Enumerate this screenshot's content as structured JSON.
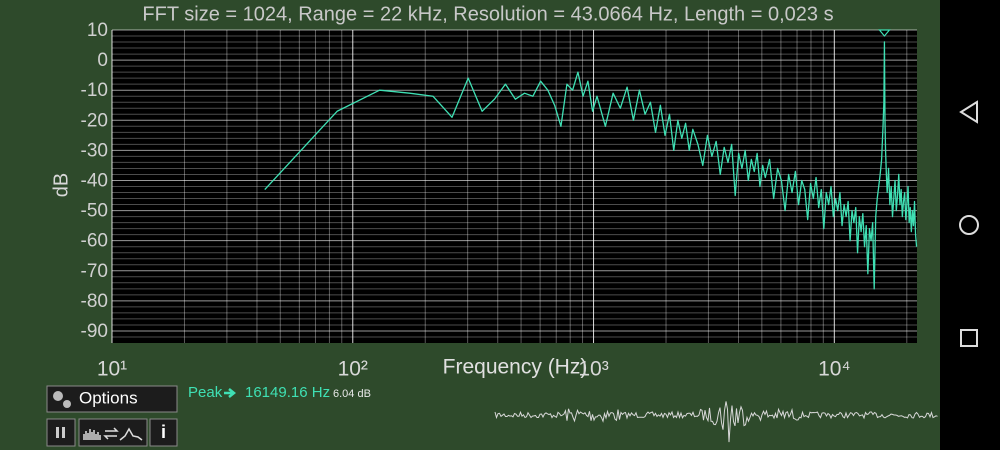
{
  "chart_data": {
    "type": "line",
    "title": "FFT size = 1024, Range = 22 kHz, Resolution = 43.0664 Hz, Length = 0,023 s",
    "x_label": "Frequency (Hz)",
    "y_label": "dB",
    "xlim": [
      10,
      22050
    ],
    "ylim": [
      -94,
      10
    ],
    "log_x": true,
    "grid": true,
    "xticks": [
      {
        "value": 10,
        "label": "10¹"
      },
      {
        "value": 100,
        "label": "10²"
      },
      {
        "value": 1000,
        "label": "10³"
      },
      {
        "value": 10000,
        "label": "10⁴"
      }
    ],
    "yticks": [
      10,
      0,
      -10,
      -20,
      -30,
      -40,
      -50,
      -60,
      -70,
      -80,
      -90
    ],
    "x": [
      43.1,
      86.1,
      129.2,
      172.3,
      215.3,
      258.4,
      301.5,
      344.5,
      387.6,
      430.7,
      473.7,
      516.8,
      559.9,
      602.9,
      646.0,
      689.1,
      732.1,
      775.2,
      818.3,
      861.3,
      904.4,
      947.5,
      990.5,
      1033.6,
      1119.7,
      1205.9,
      1292.0,
      1378.1,
      1464.3,
      1550.4,
      1636.5,
      1722.7,
      1808.8,
      1894.9,
      1981.1,
      2067.2,
      2153.3,
      2239.5,
      2325.6,
      2411.7,
      2497.9,
      2584.0,
      2713.2,
      2842.4,
      2971.6,
      3100.8,
      3230.0,
      3359.2,
      3488.4,
      3617.6,
      3746.8,
      3876.0,
      4005.2,
      4134.4,
      4263.6,
      4392.8,
      4522.0,
      4651.2,
      4780.4,
      4909.6,
      5038.8,
      5167.9,
      5383.3,
      5598.6,
      5814.0,
      6029.3,
      6244.6,
      6460.0,
      6675.3,
      6890.6,
      7106.0,
      7321.3,
      7536.6,
      7752.0,
      7967.3,
      8182.6,
      8398.0,
      8613.3,
      8828.6,
      9043.9,
      9259.3,
      9474.6,
      9689.9,
      9905.3,
      10120.6,
      10335.9,
      10551.3,
      10766.6,
      10981.9,
      11197.3,
      11412.6,
      11627.9,
      11843.3,
      12058.6,
      12273.9,
      12489.3,
      12704.6,
      12919.9,
      13135.3,
      13350.6,
      13565.9,
      13781.2,
      13996.6,
      14211.9,
      14427.2,
      14642.6,
      14857.9,
      15073.2,
      15288.6,
      15503.9,
      15719.2,
      15934.6,
      16063.8,
      16149.16,
      16192.97,
      16236.0,
      16322.2,
      16451.4,
      16580.6,
      16795.9,
      17011.2,
      17226.6,
      17441.9,
      17657.2,
      17872.6,
      18087.9,
      18303.2,
      18518.6,
      18733.9,
      18949.2,
      19164.5,
      19379.9,
      19595.2,
      19810.5,
      20025.9,
      20241.2,
      20456.5,
      20671.9,
      20887.2,
      21102.5,
      21317.9,
      21533.2,
      21748.5,
      21963.9
    ],
    "series": [
      {
        "color": "#3fe0b4",
        "values": [
          -43,
          -17,
          -10,
          -11,
          -12,
          -19,
          -6,
          -17,
          -13,
          -8,
          -13,
          -11,
          -12,
          -7,
          -10,
          -15,
          -22,
          -8,
          -10,
          -4,
          -12,
          -7,
          -17,
          -12,
          -22,
          -11,
          -16,
          -9,
          -20,
          -10,
          -18,
          -14,
          -24,
          -15,
          -25,
          -18,
          -30,
          -20,
          -26,
          -21,
          -30,
          -23,
          -28,
          -35,
          -25,
          -32,
          -27,
          -38,
          -29,
          -34,
          -28,
          -45,
          -31,
          -36,
          -30,
          -40,
          -33,
          -37,
          -31,
          -42,
          -35,
          -39,
          -33,
          -46,
          -36,
          -40,
          -50,
          -38,
          -44,
          -37,
          -48,
          -40,
          -43,
          -53,
          -41,
          -46,
          -39,
          -49,
          -43,
          -56,
          -44,
          -48,
          -42,
          -52,
          -46,
          -50,
          -44,
          -55,
          -48,
          -52,
          -47,
          -60,
          -50,
          -54,
          -49,
          -64,
          -52,
          -57,
          -51,
          -62,
          -55,
          -71,
          -56,
          -60,
          -54,
          -76,
          -52,
          -46,
          -42,
          -38,
          -33,
          -22,
          -14,
          6.04,
          -8,
          -20,
          -30,
          -38,
          -44,
          -36,
          -48,
          -42,
          -52,
          -46,
          -40,
          -50,
          -45,
          -38,
          -48,
          -43,
          -52,
          -47,
          -44,
          -53,
          -48,
          -42,
          -54,
          -49,
          -57,
          -50,
          -55,
          -47,
          -58,
          -62
        ]
      }
    ]
  },
  "peak": {
    "label": "Peak",
    "frequency": "16149.16 Hz",
    "level": "6.04 dB"
  },
  "controls": {
    "options": "Options",
    "info": "i"
  }
}
